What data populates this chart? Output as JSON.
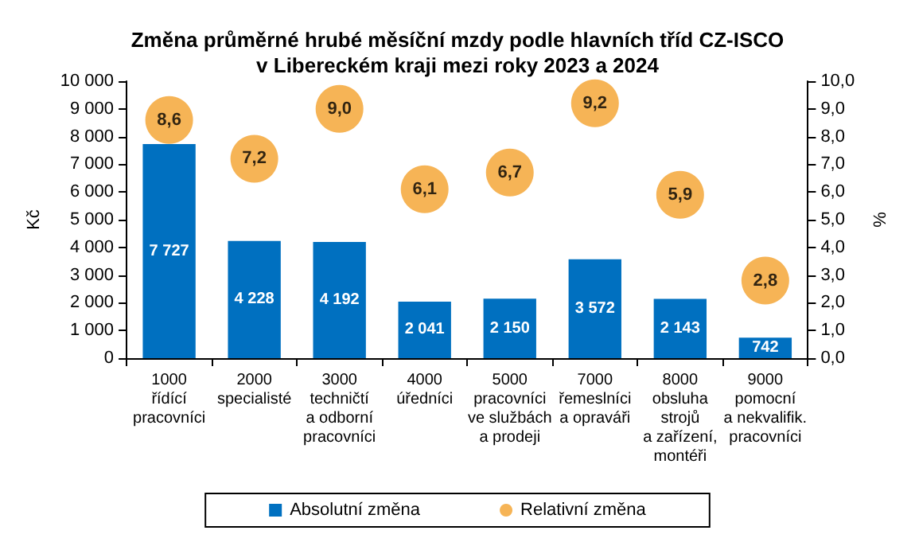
{
  "chart_data": {
    "type": "bar",
    "title": "Změna průměrné hrubé měsíční mzdy podle hlavních tříd CZ-ISCO\nv Libereckém kraji mezi roky 2023 a 2024",
    "categories": [
      "1000\nřídící\npracovníci",
      "2000\nspecialisté",
      "3000\ntechničtí\na odborní\npracovníci",
      "4000\núředníci",
      "5000\npracovníci\nve službách\na prodeji",
      "7000\nřemeslníci\na opraváři",
      "8000\nobsluha\nstrojů\na zařízení,\nmontéři",
      "9000\npomocní\na nekvalifik.\npracovníci"
    ],
    "series": [
      {
        "name": "Absolutní změna",
        "color": "#0070c0",
        "values": [
          7727,
          4228,
          4192,
          2041,
          2150,
          3572,
          2143,
          742
        ],
        "value_labels": [
          "7 727",
          "4 228",
          "4 192",
          "2 041",
          "2 150",
          "3 572",
          "2 143",
          "742"
        ]
      },
      {
        "name": "Relativní změna",
        "type": "scatter",
        "axis": "y2",
        "color": "#f4a12c",
        "marker": "circle",
        "values": [
          8.6,
          7.2,
          9.0,
          6.1,
          6.7,
          9.2,
          5.9,
          2.8
        ],
        "value_labels": [
          "8,6",
          "7,2",
          "9,0",
          "6,1",
          "6,7",
          "9,2",
          "5,9",
          "2,8"
        ]
      }
    ],
    "ylabel": "Kč",
    "y2label": "%",
    "ylim": [
      0,
      10000
    ],
    "yticks": [
      0,
      {
        "value": 1000,
        "label": "1 000"
      },
      {
        "value": 2000,
        "label": "2 000"
      },
      {
        "value": 3000,
        "label": "3 000"
      },
      {
        "value": 4000,
        "label": "4 000"
      },
      {
        "value": 5000,
        "label": "5 000"
      },
      {
        "value": 6000,
        "label": "6 000"
      },
      {
        "value": 7000,
        "label": "7 000"
      },
      {
        "value": 8000,
        "label": "8 000"
      },
      {
        "value": 9000,
        "label": "9 000"
      },
      {
        "value": 10000,
        "label": "10 000"
      }
    ],
    "y2lim": [
      0,
      10
    ],
    "y2ticks": [
      {
        "value": 0,
        "label": "0,0"
      },
      {
        "value": 1,
        "label": "1,0"
      },
      {
        "value": 2,
        "label": "2,0"
      },
      {
        "value": 3,
        "label": "3,0"
      },
      {
        "value": 4,
        "label": "4,0"
      },
      {
        "value": 5,
        "label": "5,0"
      },
      {
        "value": 6,
        "label": "6,0"
      },
      {
        "value": 7,
        "label": "7,0"
      },
      {
        "value": 8,
        "label": "8,0"
      },
      {
        "value": 9,
        "label": "9,0"
      },
      {
        "value": 10,
        "label": "10,0"
      }
    ],
    "grid": false,
    "legend": "bottom"
  }
}
